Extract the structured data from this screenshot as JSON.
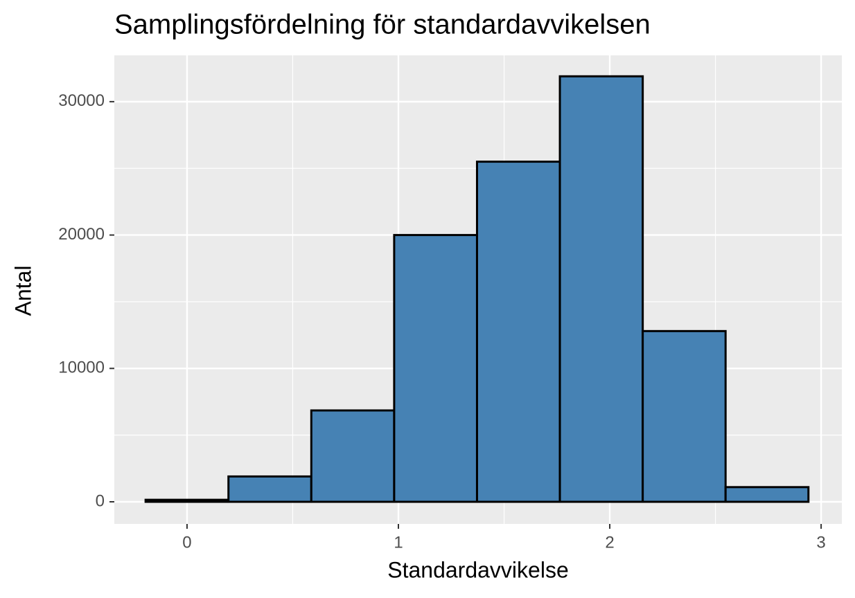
{
  "chart_data": {
    "type": "histogram",
    "title": "Samplingsfördelning för standardavvikelsen",
    "x_label": "Standardavvikelse",
    "y_label": "Antal",
    "bins": [
      -0.196,
      0.196,
      0.588,
      0.98,
      1.372,
      1.764,
      2.156,
      2.548,
      2.94
    ],
    "counts": [
      150,
      1900,
      6850,
      20000,
      25500,
      31900,
      12800,
      1100
    ],
    "color": "#4682b4",
    "edge_color": "#000000",
    "xlim": [
      -0.344,
      3.098
    ],
    "xticks": [
      0,
      1,
      2,
      3
    ],
    "ylim": [
      -1660,
      33470
    ],
    "yticks": [
      0,
      10000,
      20000,
      30000
    ],
    "grid": true
  }
}
